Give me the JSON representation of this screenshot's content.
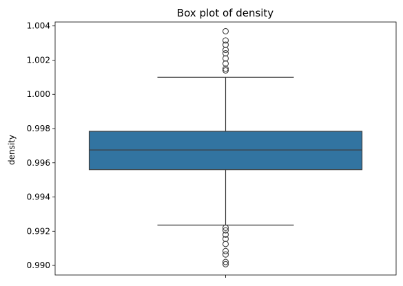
{
  "chart_data": {
    "type": "box",
    "title": "Box plot of density",
    "xlabel": "",
    "ylabel": "density",
    "ylim": [
      0.98944,
      1.00423
    ],
    "yticks": [
      0.99,
      0.992,
      0.994,
      0.996,
      0.998,
      1.0,
      1.002,
      1.004
    ],
    "ytick_labels": [
      "0.990",
      "0.992",
      "0.994",
      "0.996",
      "0.998",
      "1.000",
      "1.002",
      "1.004"
    ],
    "grid": false,
    "box": {
      "color": "#3274a1",
      "whisker_low": 0.99236,
      "q1": 0.9956,
      "median": 0.99675,
      "q3": 0.99784,
      "whisker_high": 1.001,
      "outliers_high": [
        1.0014,
        1.0015,
        1.0018,
        1.0021,
        1.0024,
        1.0026,
        1.0029,
        1.00315,
        1.00369
      ],
      "outliers_low": [
        0.9922,
        0.99205,
        0.9918,
        0.99155,
        0.99125,
        0.99084,
        0.99064,
        0.9902,
        0.99007
      ]
    }
  }
}
